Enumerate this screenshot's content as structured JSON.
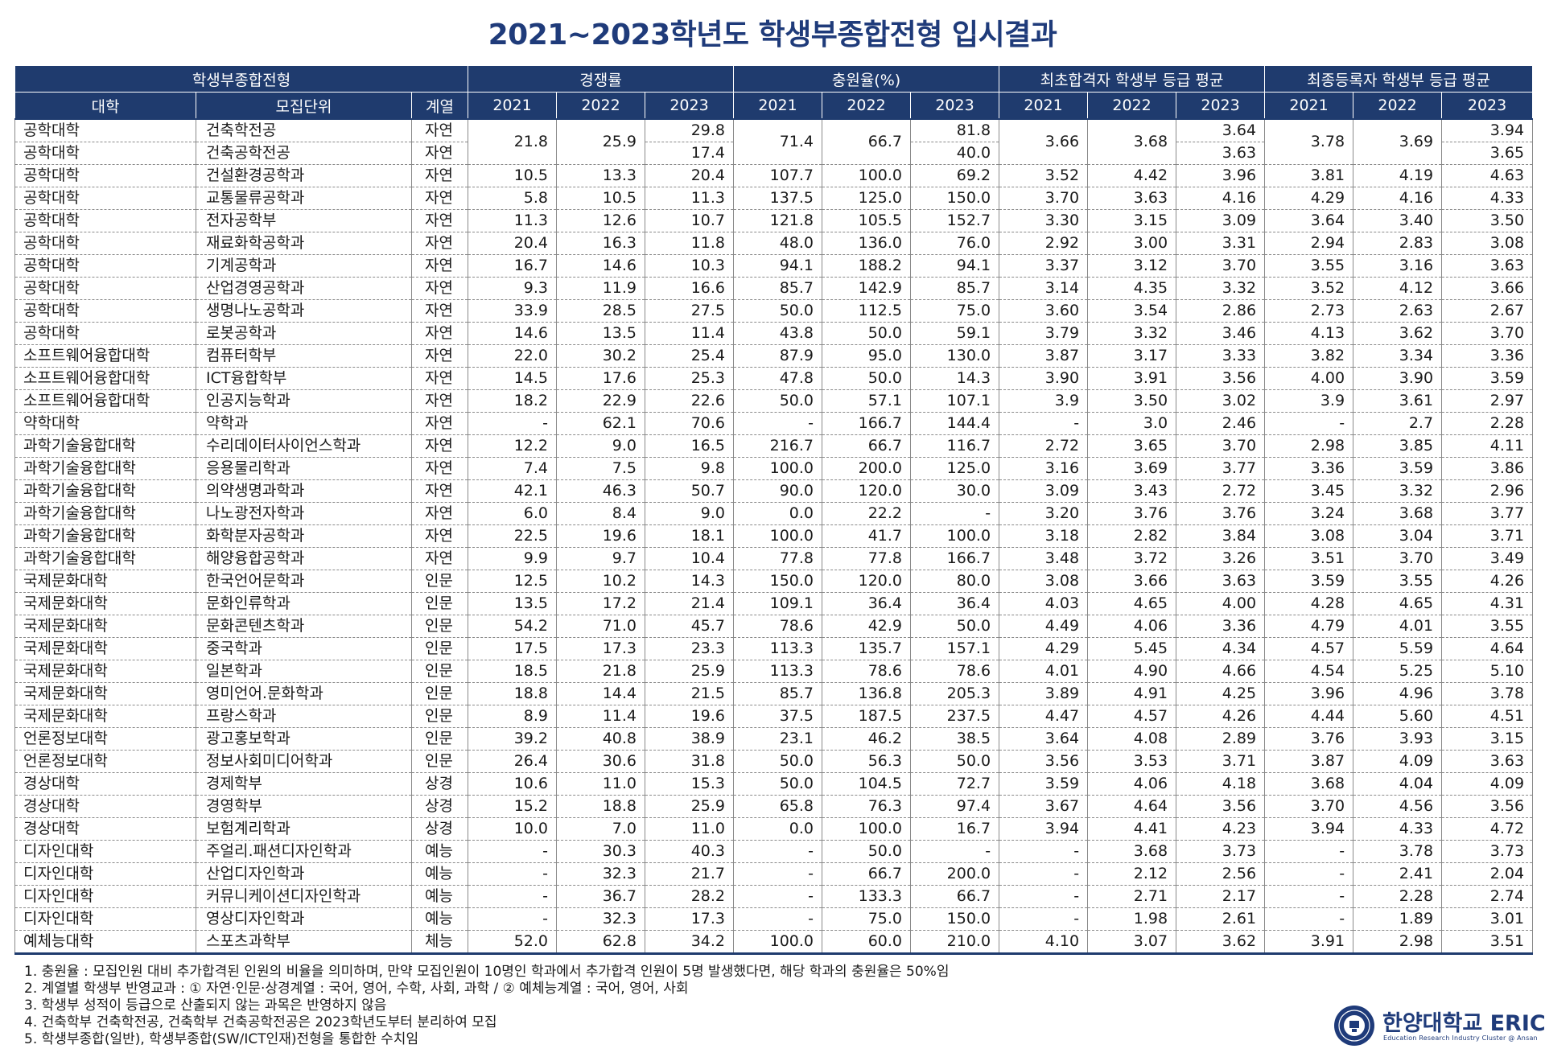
{
  "title": "2021~2023학년도 학생부종합전형 입시결과",
  "colors": {
    "header_bg": "#1f3b6e",
    "title": "#1f3b7a"
  },
  "header": {
    "group_main": "학생부종합전형",
    "group_comp": "경쟁률",
    "group_fill": "충원율(%)",
    "group_first": "최초합격자 학생부 등급 평균",
    "group_final": "최종등록자 학생부 등급 평균",
    "col_univ": "대학",
    "col_unit": "모집단위",
    "col_track": "계열",
    "years": [
      "2021",
      "2022",
      "2023"
    ]
  },
  "merged_rows": [
    {
      "univ": "공학대학",
      "unit": "건축학전공",
      "track": "자연",
      "comp2021": "21.8",
      "comp2022": "25.9",
      "comp2023": "29.8",
      "fill2021": "71.4",
      "fill2022": "66.7",
      "fill2023": "81.8",
      "first2021": "3.66",
      "first2022": "3.68",
      "first2023": "3.64",
      "final2021": "3.78",
      "final2022": "3.69",
      "final2023": "3.94"
    },
    {
      "univ": "공학대학",
      "unit": "건축공학전공",
      "track": "자연",
      "comp2023": "17.4",
      "fill2023": "40.0",
      "first2023": "3.63",
      "final2023": "3.65"
    }
  ],
  "rows": [
    [
      "공학대학",
      "건설환경공학과",
      "자연",
      "10.5",
      "13.3",
      "20.4",
      "107.7",
      "100.0",
      "69.2",
      "3.52",
      "4.42",
      "3.96",
      "3.81",
      "4.19",
      "4.63"
    ],
    [
      "공학대학",
      "교통물류공학과",
      "자연",
      "5.8",
      "10.5",
      "11.3",
      "137.5",
      "125.0",
      "150.0",
      "3.70",
      "3.63",
      "4.16",
      "4.29",
      "4.16",
      "4.33"
    ],
    [
      "공학대학",
      "전자공학부",
      "자연",
      "11.3",
      "12.6",
      "10.7",
      "121.8",
      "105.5",
      "152.7",
      "3.30",
      "3.15",
      "3.09",
      "3.64",
      "3.40",
      "3.50"
    ],
    [
      "공학대학",
      "재료화학공학과",
      "자연",
      "20.4",
      "16.3",
      "11.8",
      "48.0",
      "136.0",
      "76.0",
      "2.92",
      "3.00",
      "3.31",
      "2.94",
      "2.83",
      "3.08"
    ],
    [
      "공학대학",
      "기계공학과",
      "자연",
      "16.7",
      "14.6",
      "10.3",
      "94.1",
      "188.2",
      "94.1",
      "3.37",
      "3.12",
      "3.70",
      "3.55",
      "3.16",
      "3.63"
    ],
    [
      "공학대학",
      "산업경영공학과",
      "자연",
      "9.3",
      "11.9",
      "16.6",
      "85.7",
      "142.9",
      "85.7",
      "3.14",
      "4.35",
      "3.32",
      "3.52",
      "4.12",
      "3.66"
    ],
    [
      "공학대학",
      "생명나노공학과",
      "자연",
      "33.9",
      "28.5",
      "27.5",
      "50.0",
      "112.5",
      "75.0",
      "3.60",
      "3.54",
      "2.86",
      "2.73",
      "2.63",
      "2.67"
    ],
    [
      "공학대학",
      "로봇공학과",
      "자연",
      "14.6",
      "13.5",
      "11.4",
      "43.8",
      "50.0",
      "59.1",
      "3.79",
      "3.32",
      "3.46",
      "4.13",
      "3.62",
      "3.70"
    ],
    [
      "소프트웨어융합대학",
      "컴퓨터학부",
      "자연",
      "22.0",
      "30.2",
      "25.4",
      "87.9",
      "95.0",
      "130.0",
      "3.87",
      "3.17",
      "3.33",
      "3.82",
      "3.34",
      "3.36"
    ],
    [
      "소프트웨어융합대학",
      "ICT융합학부",
      "자연",
      "14.5",
      "17.6",
      "25.3",
      "47.8",
      "50.0",
      "14.3",
      "3.90",
      "3.91",
      "3.56",
      "4.00",
      "3.90",
      "3.59"
    ],
    [
      "소프트웨어융합대학",
      "인공지능학과",
      "자연",
      "18.2",
      "22.9",
      "22.6",
      "50.0",
      "57.1",
      "107.1",
      "3.9",
      "3.50",
      "3.02",
      "3.9",
      "3.61",
      "2.97"
    ],
    [
      "약학대학",
      "약학과",
      "자연",
      "-",
      "62.1",
      "70.6",
      "-",
      "166.7",
      "144.4",
      "-",
      "3.0",
      "2.46",
      "-",
      "2.7",
      "2.28"
    ],
    [
      "과학기술융합대학",
      "수리데이터사이언스학과",
      "자연",
      "12.2",
      "9.0",
      "16.5",
      "216.7",
      "66.7",
      "116.7",
      "2.72",
      "3.65",
      "3.70",
      "2.98",
      "3.85",
      "4.11"
    ],
    [
      "과학기술융합대학",
      "응용물리학과",
      "자연",
      "7.4",
      "7.5",
      "9.8",
      "100.0",
      "200.0",
      "125.0",
      "3.16",
      "3.69",
      "3.77",
      "3.36",
      "3.59",
      "3.86"
    ],
    [
      "과학기술융합대학",
      "의약생명과학과",
      "자연",
      "42.1",
      "46.3",
      "50.7",
      "90.0",
      "120.0",
      "30.0",
      "3.09",
      "3.43",
      "2.72",
      "3.45",
      "3.32",
      "2.96"
    ],
    [
      "과학기술융합대학",
      "나노광전자학과",
      "자연",
      "6.0",
      "8.4",
      "9.0",
      "0.0",
      "22.2",
      "-",
      "3.20",
      "3.76",
      "3.76",
      "3.24",
      "3.68",
      "3.77"
    ],
    [
      "과학기술융합대학",
      "화학분자공학과",
      "자연",
      "22.5",
      "19.6",
      "18.1",
      "100.0",
      "41.7",
      "100.0",
      "3.18",
      "2.82",
      "3.84",
      "3.08",
      "3.04",
      "3.71"
    ],
    [
      "과학기술융합대학",
      "해양융합공학과",
      "자연",
      "9.9",
      "9.7",
      "10.4",
      "77.8",
      "77.8",
      "166.7",
      "3.48",
      "3.72",
      "3.26",
      "3.51",
      "3.70",
      "3.49"
    ],
    [
      "국제문화대학",
      "한국언어문학과",
      "인문",
      "12.5",
      "10.2",
      "14.3",
      "150.0",
      "120.0",
      "80.0",
      "3.08",
      "3.66",
      "3.63",
      "3.59",
      "3.55",
      "4.26"
    ],
    [
      "국제문화대학",
      "문화인류학과",
      "인문",
      "13.5",
      "17.2",
      "21.4",
      "109.1",
      "36.4",
      "36.4",
      "4.03",
      "4.65",
      "4.00",
      "4.28",
      "4.65",
      "4.31"
    ],
    [
      "국제문화대학",
      "문화콘텐츠학과",
      "인문",
      "54.2",
      "71.0",
      "45.7",
      "78.6",
      "42.9",
      "50.0",
      "4.49",
      "4.06",
      "3.36",
      "4.79",
      "4.01",
      "3.55"
    ],
    [
      "국제문화대학",
      "중국학과",
      "인문",
      "17.5",
      "17.3",
      "23.3",
      "113.3",
      "135.7",
      "157.1",
      "4.29",
      "5.45",
      "4.34",
      "4.57",
      "5.59",
      "4.64"
    ],
    [
      "국제문화대학",
      "일본학과",
      "인문",
      "18.5",
      "21.8",
      "25.9",
      "113.3",
      "78.6",
      "78.6",
      "4.01",
      "4.90",
      "4.66",
      "4.54",
      "5.25",
      "5.10"
    ],
    [
      "국제문화대학",
      "영미언어.문화학과",
      "인문",
      "18.8",
      "14.4",
      "21.5",
      "85.7",
      "136.8",
      "205.3",
      "3.89",
      "4.91",
      "4.25",
      "3.96",
      "4.96",
      "3.78"
    ],
    [
      "국제문화대학",
      "프랑스학과",
      "인문",
      "8.9",
      "11.4",
      "19.6",
      "37.5",
      "187.5",
      "237.5",
      "4.47",
      "4.57",
      "4.26",
      "4.44",
      "5.60",
      "4.51"
    ],
    [
      "언론정보대학",
      "광고홍보학과",
      "인문",
      "39.2",
      "40.8",
      "38.9",
      "23.1",
      "46.2",
      "38.5",
      "3.64",
      "4.08",
      "2.89",
      "3.76",
      "3.93",
      "3.15"
    ],
    [
      "언론정보대학",
      "정보사회미디어학과",
      "인문",
      "26.4",
      "30.6",
      "31.8",
      "50.0",
      "56.3",
      "50.0",
      "3.56",
      "3.53",
      "3.71",
      "3.87",
      "4.09",
      "3.63"
    ],
    [
      "경상대학",
      "경제학부",
      "상경",
      "10.6",
      "11.0",
      "15.3",
      "50.0",
      "104.5",
      "72.7",
      "3.59",
      "4.06",
      "4.18",
      "3.68",
      "4.04",
      "4.09"
    ],
    [
      "경상대학",
      "경영학부",
      "상경",
      "15.2",
      "18.8",
      "25.9",
      "65.8",
      "76.3",
      "97.4",
      "3.67",
      "4.64",
      "3.56",
      "3.70",
      "4.56",
      "3.56"
    ],
    [
      "경상대학",
      "보험계리학과",
      "상경",
      "10.0",
      "7.0",
      "11.0",
      "0.0",
      "100.0",
      "16.7",
      "3.94",
      "4.41",
      "4.23",
      "3.94",
      "4.33",
      "4.72"
    ],
    [
      "디자인대학",
      "주얼리.패션디자인학과",
      "예능",
      "-",
      "30.3",
      "40.3",
      "-",
      "50.0",
      "-",
      "-",
      "3.68",
      "3.73",
      "-",
      "3.78",
      "3.73"
    ],
    [
      "디자인대학",
      "산업디자인학과",
      "예능",
      "-",
      "32.3",
      "21.7",
      "-",
      "66.7",
      "200.0",
      "-",
      "2.12",
      "2.56",
      "-",
      "2.41",
      "2.04"
    ],
    [
      "디자인대학",
      "커뮤니케이션디자인학과",
      "예능",
      "-",
      "36.7",
      "28.2",
      "-",
      "133.3",
      "66.7",
      "-",
      "2.71",
      "2.17",
      "-",
      "2.28",
      "2.74"
    ],
    [
      "디자인대학",
      "영상디자인학과",
      "예능",
      "-",
      "32.3",
      "17.3",
      "-",
      "75.0",
      "150.0",
      "-",
      "1.98",
      "2.61",
      "-",
      "1.89",
      "3.01"
    ],
    [
      "예체능대학",
      "스포츠과학부",
      "체능",
      "52.0",
      "62.8",
      "34.2",
      "100.0",
      "60.0",
      "210.0",
      "4.10",
      "3.07",
      "3.62",
      "3.91",
      "2.98",
      "3.51"
    ]
  ],
  "notes": [
    "1. 충원율 : 모집인원 대비 추가합격된 인원의 비율을 의미하며, 만약 모집인원이 10명인 학과에서 추가합격 인원이 5명 발생했다면, 해당 학과의 충원율은 50%임",
    "2. 계열별 학생부 반영교과 : ① 자연·인문·상경계열 : 국어, 영어, 수학, 사회, 과학 / ② 예체능계열 : 국어, 영어, 사회",
    "3. 학생부 성적이 등급으로 산출되지 않는 과목은 반영하지 않음",
    "4. 건축학부 건축학전공, 건축학부 건축공학전공은 2023학년도부터 분리하여 모집",
    "5. 학생부종합(일반), 학생부종합(SW/ICT인재)전형을 통합한 수치임"
  ],
  "logo": {
    "name": "한양대학교 ERICA",
    "subtitle": "Education Research Industry Cluster @ Ansan",
    "seal_icon": "university-seal-icon"
  }
}
